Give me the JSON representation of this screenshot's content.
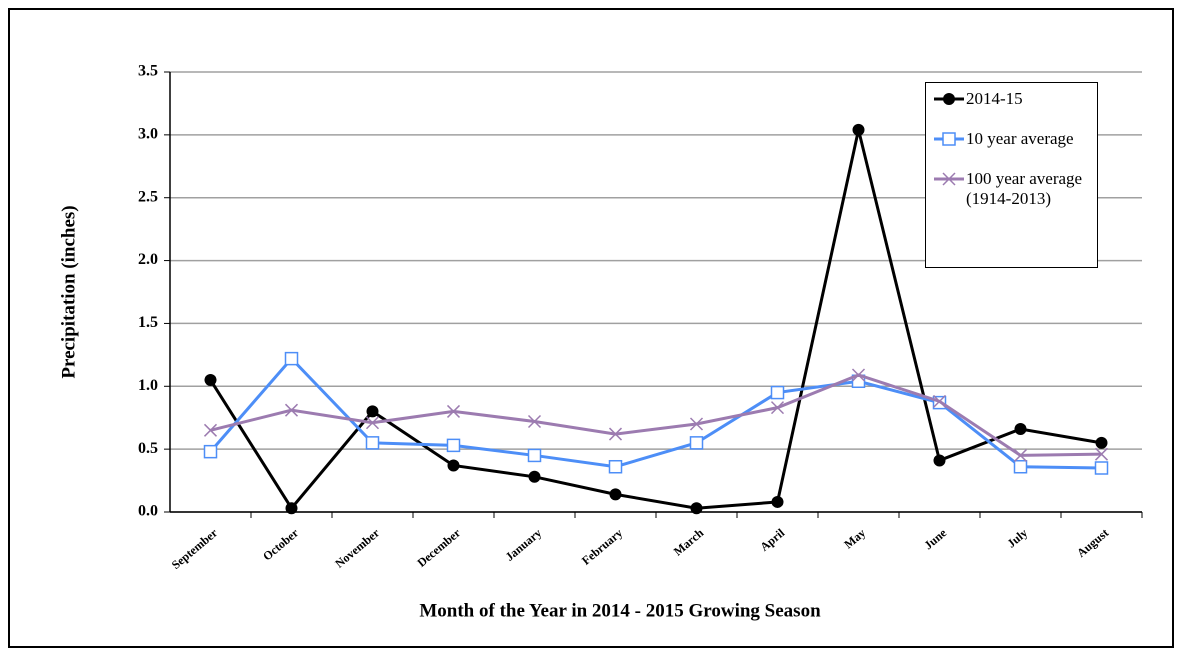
{
  "chart_data": {
    "type": "line",
    "x_label": "Month of the Year in 2014 - 2015 Growing Season",
    "y_label": "Precipitation (inches)",
    "categories": [
      "September",
      "October",
      "November",
      "December",
      "January",
      "February",
      "March",
      "April",
      "May",
      "June",
      "July",
      "August"
    ],
    "series": [
      {
        "name": "2014-15",
        "color": "#000000",
        "marker": "circle",
        "values": [
          1.05,
          0.03,
          0.8,
          0.37,
          0.28,
          0.14,
          0.03,
          0.08,
          3.04,
          0.41,
          0.66,
          0.55
        ]
      },
      {
        "name": "10 year average",
        "color": "#4d8ef7",
        "marker": "square",
        "values": [
          0.48,
          1.22,
          0.55,
          0.53,
          0.45,
          0.36,
          0.55,
          0.95,
          1.04,
          0.87,
          0.36,
          0.35
        ]
      },
      {
        "name": "100 year average (1914-2013)",
        "color": "#9c7bb0",
        "marker": "x",
        "values": [
          0.65,
          0.81,
          0.71,
          0.8,
          0.72,
          0.62,
          0.7,
          0.83,
          1.09,
          0.88,
          0.45,
          0.46
        ]
      }
    ],
    "ylim": [
      0,
      3.5
    ],
    "yticks": [
      {
        "value": 0,
        "label": "0.0"
      },
      0.5,
      {
        "value": 1,
        "label": "1.0"
      },
      1.5,
      {
        "value": 2,
        "label": "2.0"
      },
      2.5,
      {
        "value": 3,
        "label": "3.0"
      },
      3.5
    ],
    "grid": true,
    "legend": "upper right"
  }
}
